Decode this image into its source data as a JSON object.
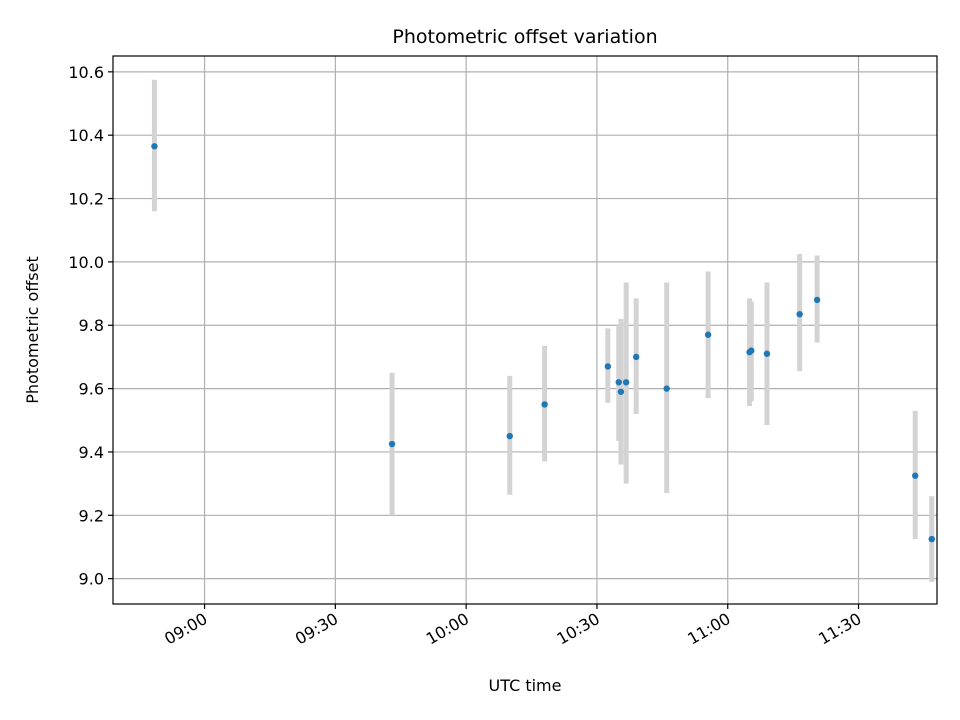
{
  "chart_data": {
    "type": "scatter",
    "title": "Photometric offset variation",
    "xlabel": "UTC time",
    "ylabel": "Photometric offset",
    "x_unit": "UTC clock time",
    "xlim": [
      "08:39",
      "11:48"
    ],
    "ylim": [
      8.92,
      10.65
    ],
    "grid": true,
    "marker_color": "#1f77b4",
    "errorbar_color": "#d3d3d3",
    "x_ticks": [
      "09:00",
      "09:30",
      "10:00",
      "10:30",
      "11:00",
      "11:30"
    ],
    "y_ticks": [
      "9.0",
      "9.2",
      "9.4",
      "9.6",
      "9.8",
      "10.0",
      "10.2",
      "10.4",
      "10.6"
    ],
    "points": [
      {
        "x": "08:48.5",
        "y": 10.365,
        "ylo": 10.16,
        "yhi": 10.575
      },
      {
        "x": "09:43",
        "y": 9.425,
        "ylo": 9.2,
        "yhi": 9.65
      },
      {
        "x": "10:10",
        "y": 9.45,
        "ylo": 9.265,
        "yhi": 9.64
      },
      {
        "x": "10:18",
        "y": 9.55,
        "ylo": 9.37,
        "yhi": 9.735
      },
      {
        "x": "10:32.5",
        "y": 9.67,
        "ylo": 9.555,
        "yhi": 9.79
      },
      {
        "x": "10:35",
        "y": 9.62,
        "ylo": 9.435,
        "yhi": 9.8
      },
      {
        "x": "10:35.5",
        "y": 9.59,
        "ylo": 9.36,
        "yhi": 9.82
      },
      {
        "x": "10:36.7",
        "y": 9.62,
        "ylo": 9.3,
        "yhi": 9.935
      },
      {
        "x": "10:39",
        "y": 9.7,
        "ylo": 9.52,
        "yhi": 9.885
      },
      {
        "x": "10:46",
        "y": 9.6,
        "ylo": 9.27,
        "yhi": 9.935
      },
      {
        "x": "10:55.5",
        "y": 9.77,
        "ylo": 9.57,
        "yhi": 9.97
      },
      {
        "x": "11:05",
        "y": 9.715,
        "ylo": 9.545,
        "yhi": 9.885
      },
      {
        "x": "11:05.4",
        "y": 9.72,
        "ylo": 9.56,
        "yhi": 9.875
      },
      {
        "x": "11:09",
        "y": 9.71,
        "ylo": 9.485,
        "yhi": 9.935
      },
      {
        "x": "11:16.5",
        "y": 9.835,
        "ylo": 9.655,
        "yhi": 10.025
      },
      {
        "x": "11:20.5",
        "y": 9.88,
        "ylo": 9.745,
        "yhi": 10.02
      },
      {
        "x": "11:43",
        "y": 9.325,
        "ylo": 9.125,
        "yhi": 9.53
      },
      {
        "x": "11:46.8",
        "y": 9.125,
        "ylo": 8.99,
        "yhi": 9.26
      }
    ]
  }
}
